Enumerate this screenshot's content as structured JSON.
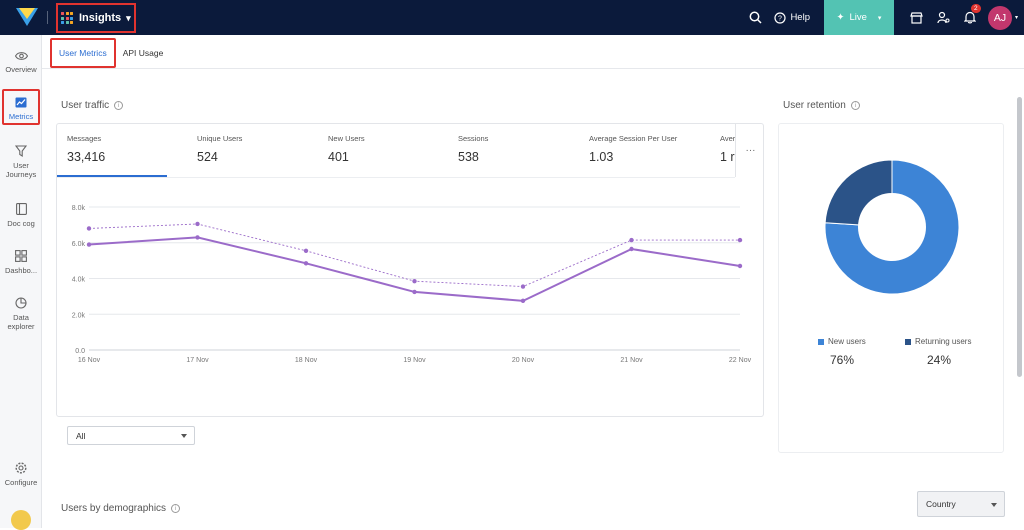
{
  "app": {
    "name": "Insights",
    "help_label": "Help",
    "live_label": "Live",
    "notifications_count": "2",
    "avatar_initials": "AJ",
    "colors": {
      "topbar": "#0b1a3b",
      "live": "#53c3b3",
      "accent": "#2b6dd1",
      "avatar": "#c2376d"
    }
  },
  "sidebar": {
    "items": [
      {
        "label": "Overview",
        "icon": "eye-icon"
      },
      {
        "label": "Metrics",
        "icon": "chart-icon",
        "active": true
      },
      {
        "label": "User Journeys",
        "icon": "funnel-icon"
      },
      {
        "label": "Doc cog",
        "icon": "document-icon"
      },
      {
        "label": "Dashbo...",
        "icon": "dashboard-icon"
      },
      {
        "label": "Data explorer",
        "icon": "pie-icon"
      },
      {
        "label": "Configure",
        "icon": "gear-icon"
      }
    ]
  },
  "tabs": [
    {
      "label": "User Metrics",
      "active": true
    },
    {
      "label": "API Usage",
      "active": false
    }
  ],
  "user_traffic": {
    "title": "User traffic",
    "metrics": [
      {
        "label": "Messages",
        "value": "33,416"
      },
      {
        "label": "Unique Users",
        "value": "524"
      },
      {
        "label": "New Users",
        "value": "401"
      },
      {
        "label": "Sessions",
        "value": "538"
      },
      {
        "label": "Average Session Per User",
        "value": "1.03"
      },
      {
        "label": "Aver",
        "value": "1 r"
      }
    ],
    "filter_value": "All"
  },
  "chart_data": {
    "type": "line",
    "x": [
      "16 Nov",
      "17 Nov",
      "18 Nov",
      "19 Nov",
      "20 Nov",
      "21 Nov",
      "22 Nov"
    ],
    "y_ticks": [
      "0.0",
      "2.0k",
      "4.0k",
      "6.0k",
      "8.0k"
    ],
    "ylim": [
      0,
      8000
    ],
    "grid": true,
    "series": [
      {
        "style": "solid",
        "color": "#9b6bc9",
        "values": [
          5900,
          6300,
          4850,
          3250,
          2750,
          5650,
          4700
        ]
      },
      {
        "style": "dashed",
        "color": "#9b6bc9",
        "values": [
          6800,
          7050,
          5550,
          3850,
          3550,
          6150,
          6150
        ]
      }
    ]
  },
  "user_retention": {
    "title": "User retention",
    "legend": [
      {
        "label": "New users",
        "pct": "76%",
        "value": 76,
        "color": "#3d84d6"
      },
      {
        "label": "Returning users",
        "pct": "24%",
        "value": 24,
        "color": "#2b5388"
      }
    ]
  },
  "demographics": {
    "title": "Users by demographics",
    "select_value": "Country"
  }
}
